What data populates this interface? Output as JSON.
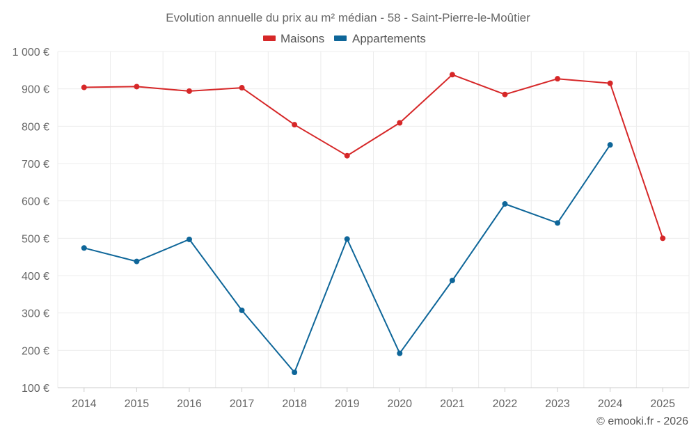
{
  "chart_data": {
    "type": "line",
    "title": "Evolution annuelle du prix au m² médian - 58 - Saint-Pierre-le-Moûtier",
    "categories": [
      "2014",
      "2015",
      "2016",
      "2017",
      "2018",
      "2019",
      "2020",
      "2021",
      "2022",
      "2023",
      "2024",
      "2025"
    ],
    "y_ticks": [
      "100 €",
      "200 €",
      "300 €",
      "400 €",
      "500 €",
      "600 €",
      "700 €",
      "800 €",
      "900 €",
      "1 000 €"
    ],
    "ylim": [
      100,
      1000
    ],
    "grid": true,
    "legend_position": "top-center",
    "series": [
      {
        "name": "Maisons",
        "color": "#d62728",
        "values": [
          904,
          906,
          894,
          903,
          804,
          721,
          809,
          938,
          885,
          927,
          915,
          500
        ]
      },
      {
        "name": "Appartements",
        "color": "#0e6699",
        "values": [
          474,
          438,
          497,
          307,
          141,
          498,
          192,
          387,
          592,
          541,
          750,
          null
        ]
      }
    ],
    "credit": "© emooki.fr - 2026"
  }
}
